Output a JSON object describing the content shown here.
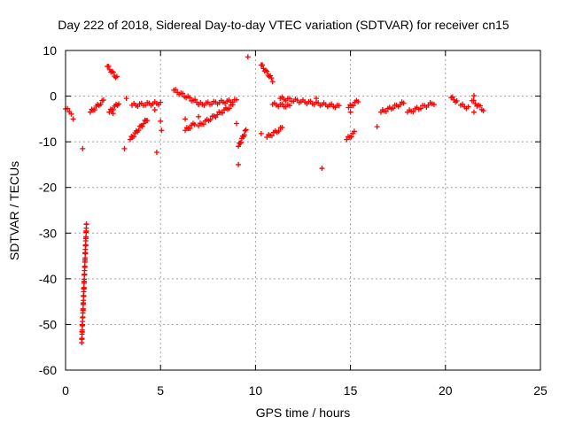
{
  "chart_data": {
    "type": "scatter",
    "title": "Day 222 of 2018, Sidereal Day-to-day VTEC variation (SDTVAR) for receiver cn15",
    "xlabel": "GPS time / hours",
    "ylabel": "SDTVAR / TECUs",
    "xlim": [
      0,
      25
    ],
    "ylim": [
      -60,
      10
    ],
    "xticks": [
      0,
      5,
      10,
      15,
      20,
      25
    ],
    "yticks": [
      10,
      0,
      -10,
      -20,
      -30,
      -40,
      -50,
      -60
    ],
    "grid": true,
    "marker": "+",
    "marker_color": "#ff0000",
    "series": [
      {
        "name": "SDTVAR",
        "segments": [
          {
            "x": [
              0.0,
              0.3
            ],
            "y": [
              -2.8,
              -3.6
            ]
          },
          {
            "x": [
              0.85,
              1.1
            ],
            "y": [
              -54,
              -28
            ]
          },
          {
            "x": [
              1.3,
              2.0
            ],
            "y": [
              -3.5,
              -1.0
            ]
          },
          {
            "x": [
              2.2,
              2.7
            ],
            "y": [
              6.5,
              4.0
            ]
          },
          {
            "x": [
              2.3,
              2.8
            ],
            "y": [
              -3.5,
              -1.5
            ]
          },
          {
            "x": [
              3.4,
              4.3
            ],
            "y": [
              -9.5,
              -5.0
            ]
          },
          {
            "x": [
              3.5,
              5.0
            ],
            "y": [
              -2.0,
              -1.5
            ]
          },
          {
            "x": [
              5.7,
              7.0
            ],
            "y": [
              1.3,
              -1.5
            ]
          },
          {
            "x": [
              6.3,
              6.8
            ],
            "y": [
              -7.5,
              -6.0
            ]
          },
          {
            "x": [
              7.0,
              8.8
            ],
            "y": [
              -6.5,
              -2.0
            ]
          },
          {
            "x": [
              7.0,
              9.0
            ],
            "y": [
              -1.8,
              -1.0
            ]
          },
          {
            "x": [
              9.1,
              9.5
            ],
            "y": [
              -11.0,
              -7.5
            ]
          },
          {
            "x": [
              10.3,
              10.9
            ],
            "y": [
              6.8,
              3.5
            ]
          },
          {
            "x": [
              10.6,
              11.4
            ],
            "y": [
              -9.0,
              -7.0
            ]
          },
          {
            "x": [
              10.9,
              11.8
            ],
            "y": [
              -1.8,
              -2.2
            ]
          },
          {
            "x": [
              11.3,
              14.4
            ],
            "y": [
              -0.5,
              -2.3
            ]
          },
          {
            "x": [
              14.8,
              15.2
            ],
            "y": [
              -9.5,
              -8.0
            ]
          },
          {
            "x": [
              14.9,
              15.4
            ],
            "y": [
              -2.5,
              -1.0
            ]
          },
          {
            "x": [
              16.6,
              17.8
            ],
            "y": [
              -3.5,
              -1.5
            ]
          },
          {
            "x": [
              18.0,
              19.4
            ],
            "y": [
              -3.5,
              -1.5
            ]
          },
          {
            "x": [
              20.3,
              20.6
            ],
            "y": [
              -0.3,
              -1.2
            ]
          },
          {
            "x": [
              20.8,
              21.2
            ],
            "y": [
              -2.0,
              -2.5
            ]
          },
          {
            "x": [
              21.4,
              22.0
            ],
            "y": [
              -1.0,
              -3.0
            ]
          }
        ],
        "isolated": [
          {
            "x": 0.4,
            "y": -5.0
          },
          {
            "x": 0.9,
            "y": -11.5
          },
          {
            "x": 2.5,
            "y": -3.8
          },
          {
            "x": 3.1,
            "y": -11.5
          },
          {
            "x": 3.2,
            "y": -0.5
          },
          {
            "x": 4.8,
            "y": -12.3
          },
          {
            "x": 4.7,
            "y": -3.0
          },
          {
            "x": 5.0,
            "y": -5.5
          },
          {
            "x": 5.05,
            "y": -7.5
          },
          {
            "x": 6.3,
            "y": -5.0
          },
          {
            "x": 7.0,
            "y": -4.5
          },
          {
            "x": 9.0,
            "y": -6.0
          },
          {
            "x": 9.1,
            "y": -15.0
          },
          {
            "x": 9.6,
            "y": 8.6
          },
          {
            "x": 10.3,
            "y": -8.2
          },
          {
            "x": 13.5,
            "y": -15.8
          },
          {
            "x": 13.2,
            "y": -0.5
          },
          {
            "x": 15.0,
            "y": -3.5
          },
          {
            "x": 16.4,
            "y": -6.7
          },
          {
            "x": 21.5,
            "y": 0.1
          },
          {
            "x": 21.5,
            "y": -3.5
          }
        ]
      }
    ]
  }
}
